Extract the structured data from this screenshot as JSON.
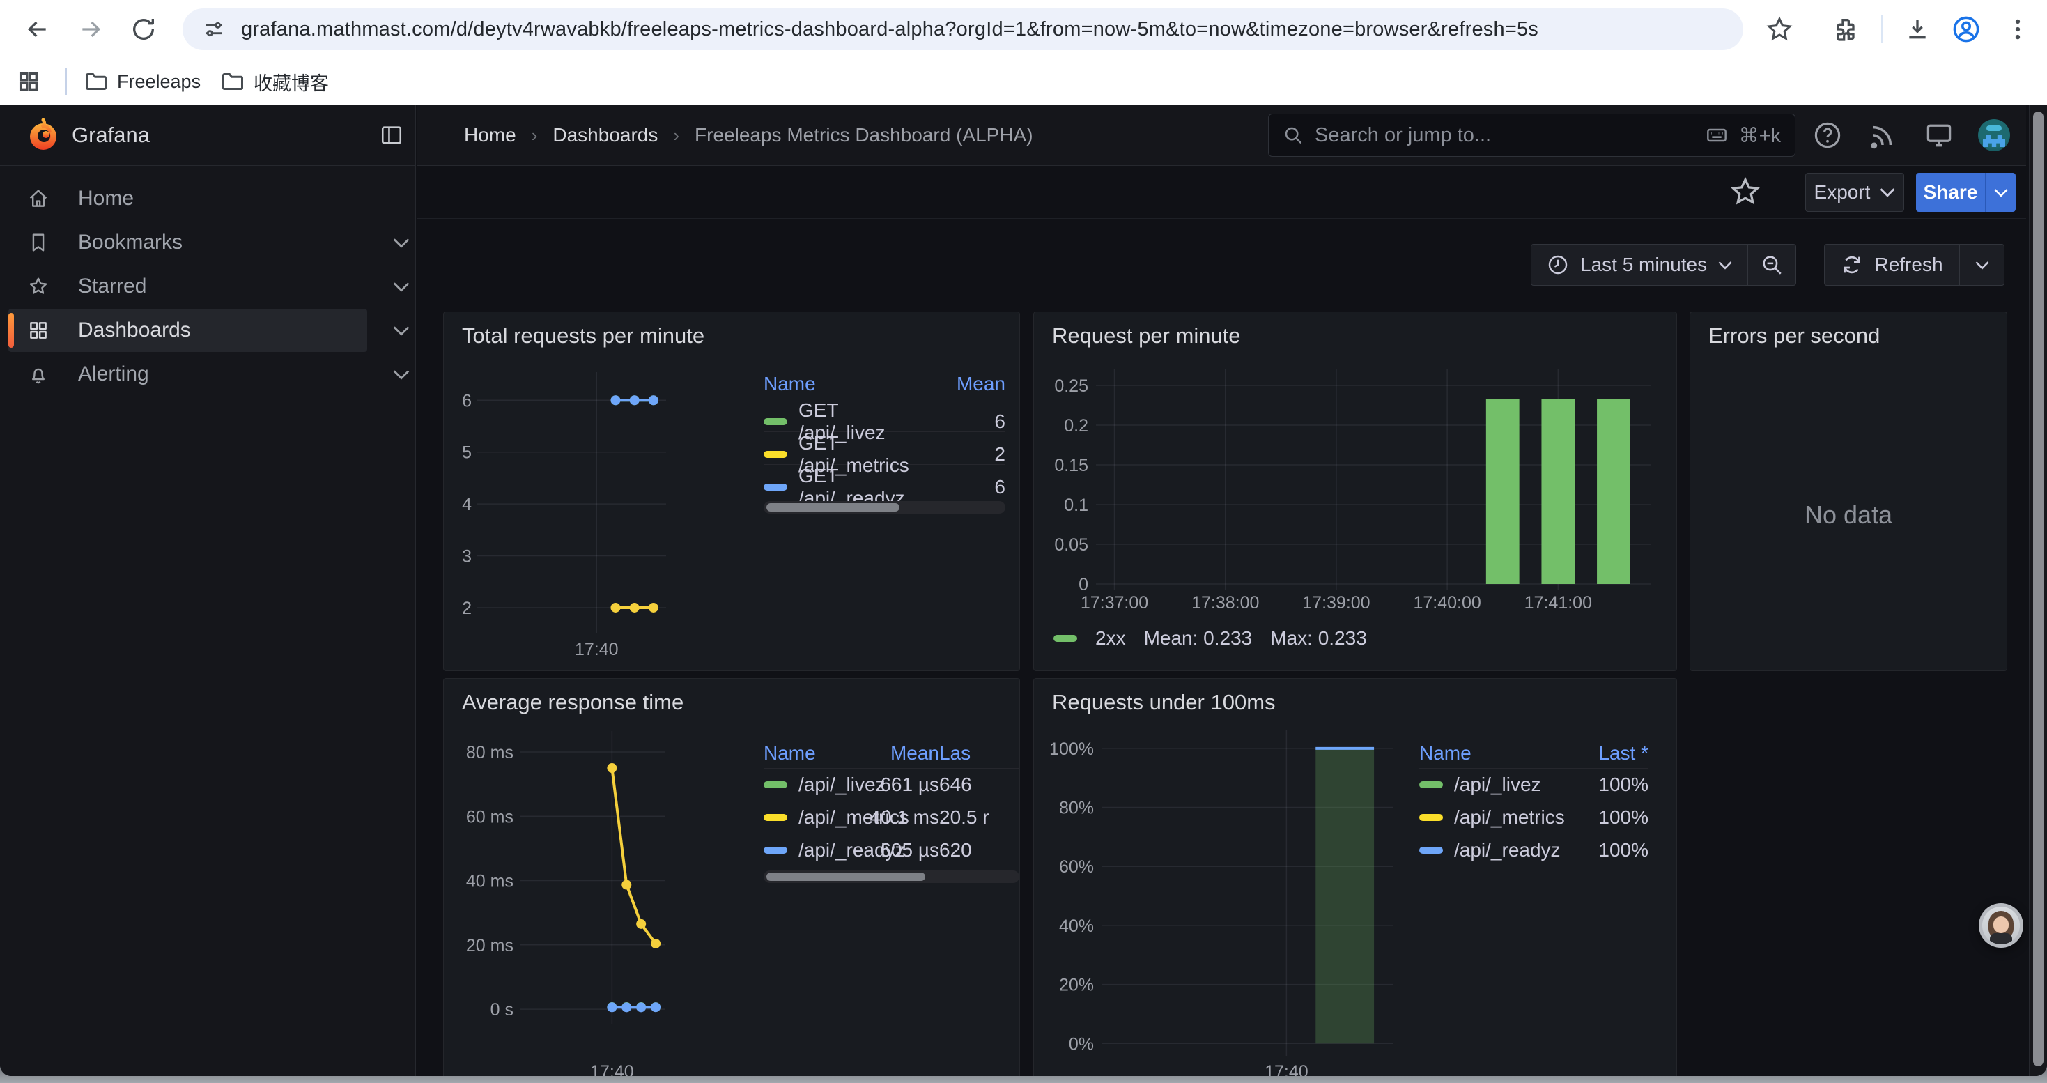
{
  "browser": {
    "url": "grafana.mathmast.com/d/deytv4rwavabkb/freeleaps-metrics-dashboard-alpha?orgId=1&from=now-5m&to=now&timezone=browser&refresh=5s",
    "bookmarks": [
      {
        "label": "Freeleaps"
      },
      {
        "label": "收藏博客"
      }
    ]
  },
  "header": {
    "app_title": "Grafana",
    "breadcrumbs": [
      "Home",
      "Dashboards",
      "Freeleaps Metrics Dashboard (ALPHA)"
    ],
    "search_placeholder": "Search or jump to...",
    "search_shortcut": "⌘+k"
  },
  "sidebar": {
    "items": [
      {
        "label": "Home",
        "icon": "home-icon",
        "selected": false,
        "chevron": false
      },
      {
        "label": "Bookmarks",
        "icon": "bookmark-icon",
        "selected": false,
        "chevron": true
      },
      {
        "label": "Starred",
        "icon": "star-icon",
        "selected": false,
        "chevron": true
      },
      {
        "label": "Dashboards",
        "icon": "grid-icon",
        "selected": true,
        "chevron": true
      },
      {
        "label": "Alerting",
        "icon": "bell-icon",
        "selected": false,
        "chevron": true
      }
    ]
  },
  "toolbar": {
    "export_label": "Export",
    "share_label": "Share",
    "time_range_label": "Last 5 minutes",
    "refresh_label": "Refresh"
  },
  "colors": {
    "green": "#73bf69",
    "yellow": "#fade2a",
    "blue": "#6ea6f9",
    "accent_blue": "#3d71d9",
    "link_blue": "#6e9fff",
    "orange_accent": "#ff7a3c"
  },
  "legend_tables": {
    "total": {
      "headers": [
        "Name",
        "Mean"
      ],
      "rows": [
        {
          "color": "#73bf69",
          "name": "GET /api/_livez",
          "values": [
            "6"
          ]
        },
        {
          "color": "#fade2a",
          "name": "GET /api/_metrics",
          "values": [
            "2"
          ]
        },
        {
          "color": "#6ea6f9",
          "name": "GET /api/_readyz",
          "values": [
            "6"
          ]
        }
      ]
    },
    "avg": {
      "headers": [
        "Name",
        "Mean",
        "Las"
      ],
      "rows": [
        {
          "color": "#73bf69",
          "name": "/api/_livez",
          "values": [
            "661 µs",
            "646"
          ]
        },
        {
          "color": "#fade2a",
          "name": "/api/_metrics",
          "values": [
            "40.1 ms",
            "20.5 r"
          ]
        },
        {
          "color": "#6ea6f9",
          "name": "/api/_readyz",
          "values": [
            "605 µs",
            "620"
          ]
        }
      ]
    },
    "under": {
      "headers": [
        "Name",
        "Last *"
      ],
      "rows": [
        {
          "color": "#73bf69",
          "name": "/api/_livez",
          "values": [
            "100%"
          ]
        },
        {
          "color": "#fade2a",
          "name": "/api/_metrics",
          "values": [
            "100%"
          ]
        },
        {
          "color": "#6ea6f9",
          "name": "/api/_readyz",
          "values": [
            "100%"
          ]
        }
      ]
    }
  },
  "chart_data": [
    {
      "id": "total-requests-per-minute",
      "type": "line",
      "title": "Total requests per minute",
      "x_range": [
        "17:36:50",
        "17:41:50"
      ],
      "x_ticks": [
        {
          "time": "17:40:00",
          "label": "17:40"
        }
      ],
      "y_range": [
        1.61,
        6.38
      ],
      "y_ticks": [
        {
          "v": 6,
          "label": "6"
        },
        {
          "v": 5,
          "label": "5"
        },
        {
          "v": 4,
          "label": "4"
        },
        {
          "v": 3,
          "label": "3"
        },
        {
          "v": 2,
          "label": "2"
        }
      ],
      "series": [
        {
          "name": "GET /api/_livez",
          "color": "#73bf69",
          "points": [
            [
              "17:40:30",
              6
            ],
            [
              "17:41:00",
              6
            ],
            [
              "17:41:30",
              6
            ]
          ]
        },
        {
          "name": "GET /api/_metrics",
          "color": "#f5d03c",
          "points": [
            [
              "17:40:30",
              2
            ],
            [
              "17:41:00",
              2
            ],
            [
              "17:41:30",
              2
            ]
          ]
        },
        {
          "name": "GET /api/_readyz",
          "color": "#6ea6f9",
          "points": [
            [
              "17:40:30",
              6
            ],
            [
              "17:41:00",
              6
            ],
            [
              "17:41:30",
              6
            ]
          ]
        }
      ]
    },
    {
      "id": "request-per-minute",
      "type": "bar",
      "title": "Request per minute",
      "x_range": [
        "17:36:50",
        "17:41:50"
      ],
      "x_ticks": [
        {
          "time": "17:37:00",
          "label": "17:37:00"
        },
        {
          "time": "17:38:00",
          "label": "17:38:00"
        },
        {
          "time": "17:39:00",
          "label": "17:39:00"
        },
        {
          "time": "17:40:00",
          "label": "17:40:00"
        },
        {
          "time": "17:41:00",
          "label": "17:41:00"
        }
      ],
      "y_range": [
        0,
        0.2605
      ],
      "y_ticks": [
        {
          "v": 0.25,
          "label": "0.25"
        },
        {
          "v": 0.2,
          "label": "0.2"
        },
        {
          "v": 0.15,
          "label": "0.15"
        },
        {
          "v": 0.1,
          "label": "0.1"
        },
        {
          "v": 0.05,
          "label": "0.05"
        },
        {
          "v": 0,
          "label": "0"
        }
      ],
      "bar_width_seconds": 18,
      "series": [
        {
          "name": "2xx",
          "color": "#73bf69",
          "points": [
            [
              "17:40:30",
              0.233
            ],
            [
              "17:41:00",
              0.233
            ],
            [
              "17:41:30",
              0.233
            ]
          ]
        }
      ],
      "legend": {
        "name": "2xx",
        "mean": "Mean: 0.233",
        "max": "Max: 0.233"
      }
    },
    {
      "id": "errors-per-second",
      "type": "none",
      "title": "Errors per second",
      "message": "No data"
    },
    {
      "id": "average-response-time",
      "type": "line",
      "title": "Average response time",
      "x_range": [
        "17:36:50",
        "17:41:50"
      ],
      "x_ticks": [
        {
          "time": "17:40:00",
          "label": "17:40"
        }
      ],
      "y_unit": "ms",
      "y_range": [
        -2.8,
        83.9
      ],
      "y_ticks": [
        {
          "v": 80,
          "label": "80 ms"
        },
        {
          "v": 60,
          "label": "60 ms"
        },
        {
          "v": 40,
          "label": "40 ms"
        },
        {
          "v": 20,
          "label": "20 ms"
        },
        {
          "v": 0,
          "label": "0 s"
        }
      ],
      "series": [
        {
          "name": "/api/_metrics",
          "color": "#f5d03c",
          "points": [
            [
              "17:40:00",
              75
            ],
            [
              "17:40:30",
              38.7
            ],
            [
              "17:41:00",
              26.5
            ],
            [
              "17:41:30",
              20.4
            ]
          ]
        },
        {
          "name": "/api/_livez",
          "color": "#73bf69",
          "points": [
            [
              "17:40:00",
              0.66
            ],
            [
              "17:40:30",
              0.66
            ],
            [
              "17:41:00",
              0.66
            ],
            [
              "17:41:30",
              0.65
            ]
          ]
        },
        {
          "name": "/api/_readyz",
          "color": "#6ea6f9",
          "points": [
            [
              "17:40:00",
              0.61
            ],
            [
              "17:40:30",
              0.6
            ],
            [
              "17:41:00",
              0.6
            ],
            [
              "17:41:30",
              0.62
            ]
          ]
        }
      ]
    },
    {
      "id": "requests-under-100ms",
      "type": "span-bar",
      "title": "Requests under 100ms",
      "x_range": [
        "17:36:50",
        "17:41:50"
      ],
      "x_ticks": [
        {
          "time": "17:40:00",
          "label": "17:40"
        }
      ],
      "y_range": [
        -2.3,
        103.5
      ],
      "y_ticks": [
        {
          "v": 100,
          "label": "100%"
        },
        {
          "v": 80,
          "label": "80%"
        },
        {
          "v": 60,
          "label": "60%"
        },
        {
          "v": 40,
          "label": "40%"
        },
        {
          "v": 20,
          "label": "20%"
        },
        {
          "v": 0,
          "label": "0%"
        }
      ],
      "span": {
        "from": "17:40:30",
        "to": "17:41:30",
        "value": 100,
        "fill": "rgba(115,191,105,0.25)",
        "top_line_color": "#6ea6f9"
      }
    }
  ],
  "misc": {
    "no_data": "No data"
  }
}
